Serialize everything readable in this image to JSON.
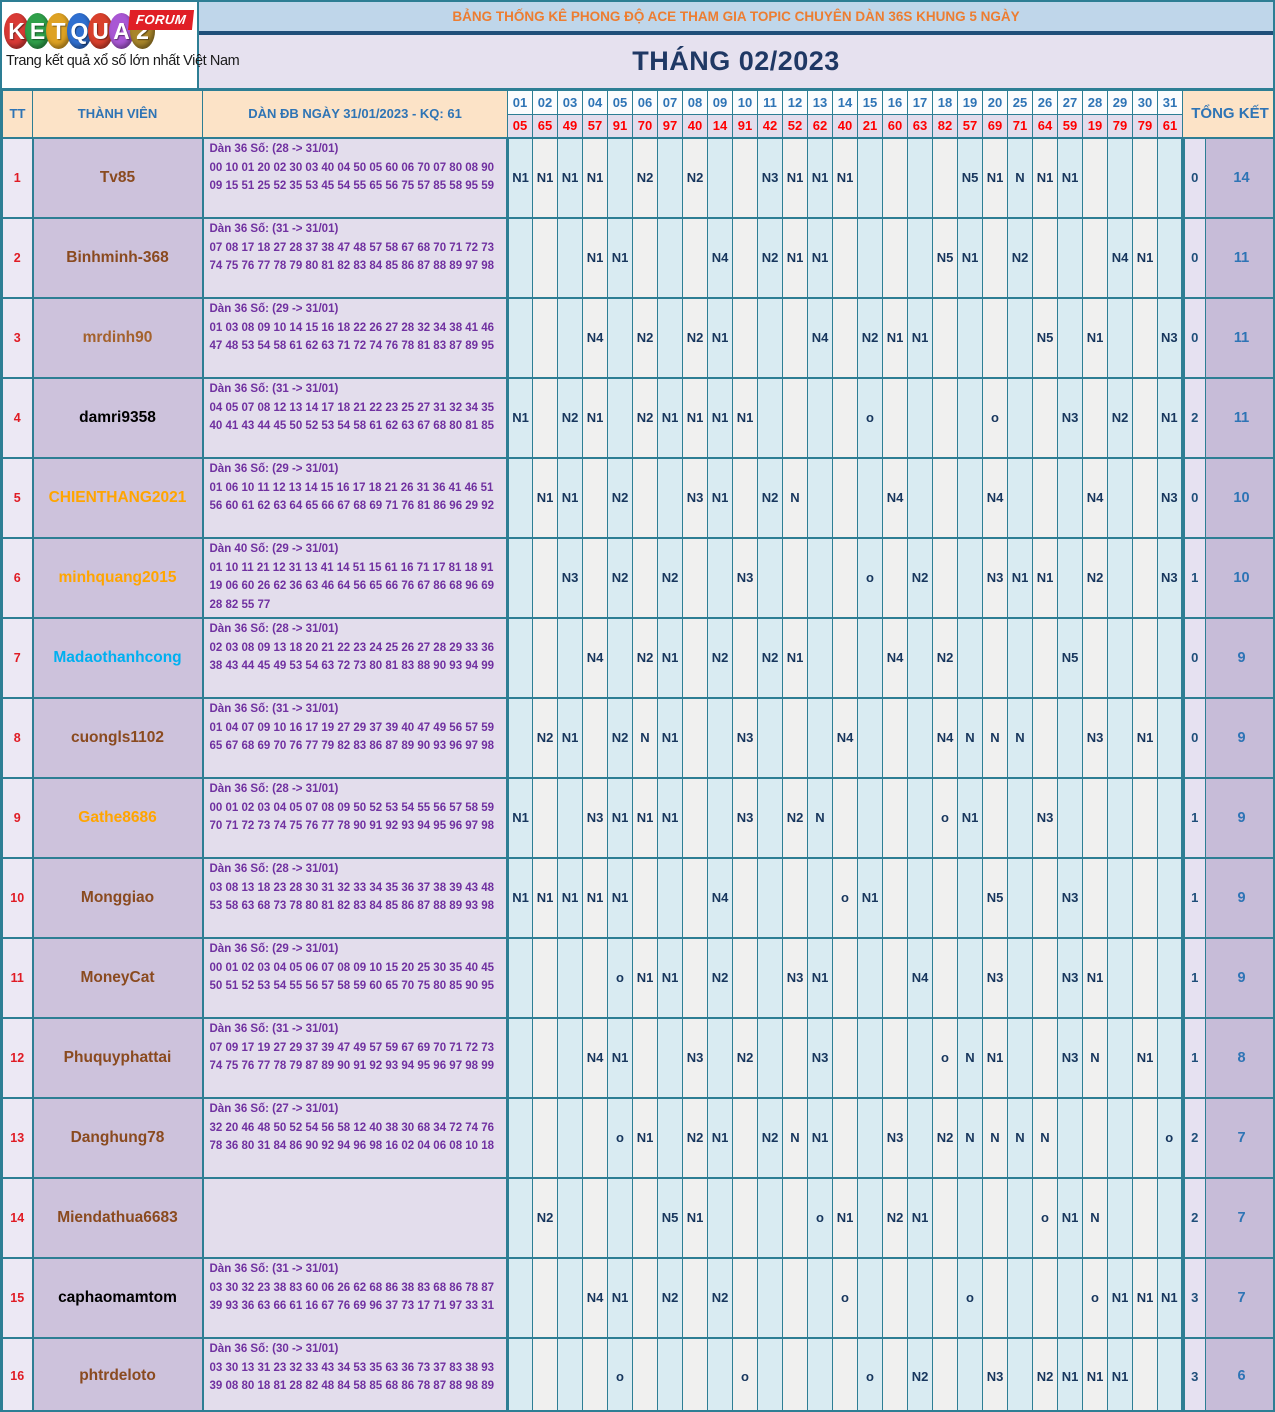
{
  "header": {
    "logo_letters": [
      "K",
      "E",
      "T",
      "Q",
      "U",
      "A",
      "2"
    ],
    "logo_colors": [
      "#d93a35",
      "#2fa04a",
      "#dea223",
      "#2f6fd0",
      "#d9402c",
      "#a957d4",
      "#a8852a"
    ],
    "forum_label": "FORUM",
    "tagline": "Trang kết quả xổ số lớn nhất Việt Nam",
    "banner": "BẢNG THỐNG KÊ PHONG ĐỘ ACE THAM GIA TOPIC CHUYÊN DÀN 36S KHUNG 5 NGÀY",
    "month_title": "THÁNG 02/2023",
    "banner_color": "#ed7d31",
    "month_color": "#1f3864"
  },
  "columns": {
    "tt": "TT",
    "member": "THÀNH VIÊN",
    "dan": "DÀN ĐB NGÀY 31/01/2023 - KQ: 61",
    "total": "TỔNG KẾT",
    "days": [
      "01",
      "02",
      "03",
      "04",
      "05",
      "06",
      "07",
      "08",
      "09",
      "10",
      "11",
      "12",
      "13",
      "14",
      "15",
      "16",
      "17",
      "18",
      "19",
      "20",
      "25",
      "26",
      "27",
      "28",
      "29",
      "30",
      "31"
    ],
    "kq": [
      "05",
      "65",
      "49",
      "57",
      "91",
      "70",
      "97",
      "40",
      "14",
      "91",
      "42",
      "52",
      "62",
      "40",
      "21",
      "60",
      "63",
      "82",
      "57",
      "69",
      "71",
      "64",
      "59",
      "19",
      "79",
      "79",
      "61"
    ]
  },
  "colors": {
    "border_teal": "#2d7e94",
    "value_navy": "#17365d",
    "day_blue": "#2e74b5",
    "kq_red": "#ff0000",
    "dan_purple": "#7030a0",
    "cell_blue_bg": "#d9ebf2",
    "cell_white_bg": "#f0f0ef"
  },
  "rows": [
    {
      "tt": "1",
      "member": "Tv85",
      "color": "#8a4a1f",
      "dan_title": "Dàn 36 Số: (28 -> 31/01)",
      "dan_nums": "00 10 01 20 02 30 03 40 04 50 05 60 06 70 07 80 08 90 09 15 51 25 52 35 53 45 54 55 65 56 75 57 85 58 95 59",
      "cells": [
        "N1",
        "N1",
        "N1",
        "N1",
        "",
        "N2",
        "",
        "N2",
        "",
        "",
        "N3",
        "N1",
        "N1",
        "N1",
        "",
        "",
        "",
        "",
        "N5",
        "N1",
        "N",
        "N1",
        "N1",
        "",
        "",
        "",
        ""
      ],
      "totals": [
        "0",
        "14"
      ]
    },
    {
      "tt": "2",
      "member": "Binhminh-368",
      "color": "#8a4a1f",
      "dan_title": "Dàn 36 Số: (31 -> 31/01)",
      "dan_nums": "07 08 17 18 27 28 37 38 47 48 57 58 67 68 70 71 72 73 74 75 76 77 78 79 80 81 82 83 84 85 86 87 88 89 97 98",
      "cells": [
        "",
        "",
        "",
        "N1",
        "N1",
        "",
        "",
        "",
        "N4",
        "",
        "N2",
        "N1",
        "N1",
        "",
        "",
        "",
        "",
        "N5",
        "N1",
        "",
        "N2",
        "",
        "",
        "",
        "N4",
        "N1",
        ""
      ],
      "totals": [
        "0",
        "11"
      ]
    },
    {
      "tt": "3",
      "member": "mrdinh90",
      "color": "#a4622d",
      "dan_title": "Dàn 36 Số: (29 -> 31/01)",
      "dan_nums": "01 03 08 09 10 14 15 16 18 22 26 27 28 32 34 38 41 46 47 48 53 54 58 61 62 63 71 72 74 76 78 81 83 87 89 95",
      "cells": [
        "",
        "",
        "",
        "N4",
        "",
        "N2",
        "",
        "N2",
        "N1",
        "",
        "",
        "",
        "N4",
        "",
        "N2",
        "N1",
        "N1",
        "",
        "",
        "",
        "",
        "N5",
        "",
        "N1",
        "",
        "",
        "N3"
      ],
      "totals": [
        "0",
        "11"
      ]
    },
    {
      "tt": "4",
      "member": "damri9358",
      "color": "#000000",
      "dan_title": "Dàn 36 Số: (31 -> 31/01)",
      "dan_nums": "04 05 07 08 12 13 14 17 18 21 22 23 25 27 31 32 34 35 40 41 43 44 45 50 52 53 54 58 61 62 63 67 68 80 81 85",
      "cells": [
        "N1",
        "",
        "N2",
        "N1",
        "",
        "N2",
        "N1",
        "N1",
        "N1",
        "N1",
        "",
        "",
        "",
        "",
        "o",
        "",
        "",
        "",
        "",
        "o",
        "",
        "",
        "N3",
        "",
        "N2",
        "",
        "N1"
      ],
      "totals": [
        "2",
        "11"
      ]
    },
    {
      "tt": "5",
      "member": "CHIENTHANG2021",
      "color": "#ffa500",
      "dan_title": "Dàn 36 Số: (29 -> 31/01)",
      "dan_nums": "01 06 10 11 12 13 14 15 16 17 18 21 26 31 36 41 46 51 56 60 61 62 63 64 65 66 67 68 69 71 76 81 86 96 29 92",
      "cells": [
        "",
        "N1",
        "N1",
        "",
        "N2",
        "",
        "",
        "N3",
        "N1",
        "",
        "N2",
        "N",
        "",
        "",
        "",
        "N4",
        "",
        "",
        "",
        "N4",
        "",
        "",
        "",
        "N4",
        "",
        "",
        "N3"
      ],
      "totals": [
        "0",
        "10"
      ]
    },
    {
      "tt": "6",
      "member": "minhquang2015",
      "color": "#ffa500",
      "dan_title": "Dàn 40 Số: (29 -> 31/01)",
      "dan_nums": "01 10 11 21 12 31 13 41 14 51 15 61 16 71 17 81 18 91 19 06 60 26 62 36 63 46 64 56 65 66 76 67 86 68 96 69 28 82 55 77",
      "cells": [
        "",
        "",
        "N3",
        "",
        "N2",
        "",
        "N2",
        "",
        "",
        "N3",
        "",
        "",
        "",
        "",
        "o",
        "",
        "N2",
        "",
        "",
        "N3",
        "N1",
        "N1",
        "",
        "N2",
        "",
        "",
        "N3"
      ],
      "totals": [
        "1",
        "10"
      ]
    },
    {
      "tt": "7",
      "member": "Madaothanhcong",
      "color": "#00b0f0",
      "dan_title": "Dàn 36 Số: (28 -> 31/01)",
      "dan_nums": "02 03 08 09 13 18 20 21 22 23 24 25 26 27 28 29 33 36 38 43 44 45 49 53 54 63 72 73 80 81 83 88 90 93 94 99",
      "cells": [
        "",
        "",
        "",
        "N4",
        "",
        "N2",
        "N1",
        "",
        "N2",
        "",
        "N2",
        "N1",
        "",
        "",
        "",
        "N4",
        "",
        "N2",
        "",
        "",
        "",
        "",
        "N5",
        "",
        "",
        "",
        ""
      ],
      "totals": [
        "0",
        "9"
      ]
    },
    {
      "tt": "8",
      "member": "cuongls1102",
      "color": "#8a4a1f",
      "dan_title": "Dàn 36 Số: (31 -> 31/01)",
      "dan_nums": "01 04 07 09 10 16 17 19 27 29 37 39 40 47 49 56 57 59 65 67 68 69 70 76 77 79 82 83 86 87 89 90 93 96 97 98",
      "cells": [
        "",
        "N2",
        "N1",
        "",
        "N2",
        "N",
        "N1",
        "",
        "",
        "N3",
        "",
        "",
        "",
        "N4",
        "",
        "",
        "",
        "N4",
        "N",
        "N",
        "N",
        "",
        "",
        "N3",
        "",
        "N1",
        ""
      ],
      "totals": [
        "0",
        "9"
      ]
    },
    {
      "tt": "9",
      "member": "Gathe8686",
      "color": "#ffa500",
      "dan_title": "Dàn 36 Số: (28 -> 31/01)",
      "dan_nums": "00 01 02 03 04 05 07 08 09 50 52 53 54 55 56 57 58 59 70 71 72 73 74 75 76 77 78 90 91 92 93 94 95 96 97 98",
      "cells": [
        "N1",
        "",
        "",
        "N3",
        "N1",
        "N1",
        "N1",
        "",
        "",
        "N3",
        "",
        "N2",
        "N",
        "",
        "",
        "",
        "",
        "o",
        "N1",
        "",
        "",
        "N3",
        "",
        "",
        "",
        "",
        ""
      ],
      "totals": [
        "1",
        "9"
      ]
    },
    {
      "tt": "10",
      "member": "Monggiao",
      "color": "#8a4a1f",
      "dan_title": "Dàn 36 Số: (28 -> 31/01)",
      "dan_nums": "03 08 13 18 23 28 30 31 32 33 34 35 36 37 38 39 43 48 53 58 63 68 73 78 80 81 82 83 84 85 86 87 88 89 93 98",
      "cells": [
        "N1",
        "N1",
        "N1",
        "N1",
        "N1",
        "",
        "",
        "",
        "N4",
        "",
        "",
        "",
        "",
        "o",
        "N1",
        "",
        "",
        "",
        "",
        "N5",
        "",
        "",
        "N3",
        "",
        "",
        "",
        ""
      ],
      "totals": [
        "1",
        "9"
      ]
    },
    {
      "tt": "11",
      "member": "MoneyCat",
      "color": "#8a4a1f",
      "dan_title": "Dàn 36 Số: (29 -> 31/01)",
      "dan_nums": "00 01 02 03 04 05 06 07 08 09 10 15 20 25 30 35 40 45 50 51 52 53 54 55 56 57 58 59 60 65 70 75 80 85 90 95",
      "cells": [
        "",
        "",
        "",
        "",
        "o",
        "N1",
        "N1",
        "",
        "N2",
        "",
        "",
        "N3",
        "N1",
        "",
        "",
        "",
        "N4",
        "",
        "",
        "N3",
        "",
        "",
        "N3",
        "N1",
        "",
        "",
        ""
      ],
      "totals": [
        "1",
        "9"
      ]
    },
    {
      "tt": "12",
      "member": "Phuquyphattai",
      "color": "#8a4a1f",
      "dan_title": "Dàn 36 Số: (31 -> 31/01)",
      "dan_nums": "07 09 17 19 27 29 37 39 47 49 57 59 67 69 70 71 72 73 74 75 76 77 78 79 87 89 90 91 92 93 94 95 96 97 98 99",
      "cells": [
        "",
        "",
        "",
        "N4",
        "N1",
        "",
        "",
        "N3",
        "",
        "N2",
        "",
        "",
        "N3",
        "",
        "",
        "",
        "",
        "o",
        "N",
        "N1",
        "",
        "",
        "N3",
        "N",
        "",
        "N1",
        ""
      ],
      "totals": [
        "1",
        "8"
      ]
    },
    {
      "tt": "13",
      "member": "Danghung78",
      "color": "#8a4a1f",
      "dan_title": "Dàn 36 Số: (27 -> 31/01)",
      "dan_nums": "32 20 46 48 50 52 54 56 58 12 40 38 30 68 34 72 74 76 78 36 80 31 84 86 90 92 94 96 98 16 02 04 06 08 10 18",
      "cells": [
        "",
        "",
        "",
        "",
        "o",
        "N1",
        "",
        "N2",
        "N1",
        "",
        "N2",
        "N",
        "N1",
        "",
        "",
        "N3",
        "",
        "N2",
        "N",
        "N",
        "N",
        "N",
        "",
        "",
        "",
        "",
        "o"
      ],
      "totals": [
        "2",
        "7"
      ]
    },
    {
      "tt": "14",
      "member": "Miendathua6683",
      "color": "#8a4a1f",
      "dan_title": "",
      "dan_nums": "",
      "cells": [
        "",
        "N2",
        "",
        "",
        "",
        "",
        "N5",
        "N1",
        "",
        "",
        "",
        "",
        "o",
        "N1",
        "",
        "N2",
        "N1",
        "",
        "",
        "",
        "",
        "o",
        "N1",
        "N",
        "",
        "",
        ""
      ],
      "totals": [
        "2",
        "7"
      ]
    },
    {
      "tt": "15",
      "member": "caphaomamtom",
      "color": "#000000",
      "dan_title": "Dàn 36 Số: (31 -> 31/01)",
      "dan_nums": "03 30 32 23 38 83 60 06 26 62 68 86 38 83 68 86 78 87 39 93 36 63 66 61 16 67 76 69 96 37 73 17 71 97 33 31",
      "cells": [
        "",
        "",
        "",
        "N4",
        "N1",
        "",
        "N2",
        "",
        "N2",
        "",
        "",
        "",
        "",
        "o",
        "",
        "",
        "",
        "",
        "o",
        "",
        "",
        "",
        "",
        "o",
        "N1",
        "N1",
        "N1"
      ],
      "totals": [
        "3",
        "7"
      ]
    },
    {
      "tt": "16",
      "member": "phtrdeloto",
      "color": "#8a4a1f",
      "dan_title": "Dàn 36 Số: (30 -> 31/01)",
      "dan_nums": "03 30 13 31 23 32 33 43 34 53 35 63 36 73 37 83 38 93 39 08 80 18 81 28 82 48 84 58 85 68 86 78 87 88 98 89",
      "cells": [
        "",
        "",
        "",
        "",
        "o",
        "",
        "",
        "",
        "",
        "o",
        "",
        "",
        "",
        "",
        "o",
        "",
        "N2",
        "",
        "",
        "N3",
        "",
        "N2",
        "N1",
        "N1",
        "N1",
        "",
        ""
      ],
      "totals": [
        "3",
        "6"
      ]
    }
  ]
}
